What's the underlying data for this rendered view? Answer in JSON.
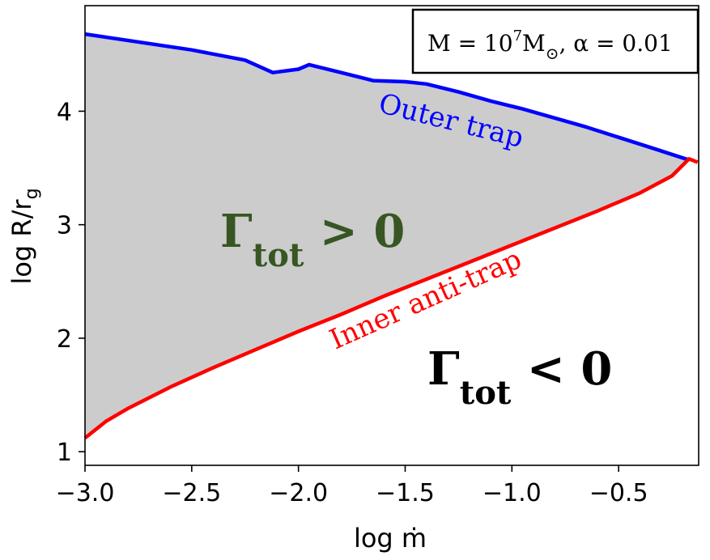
{
  "chart_data": {
    "type": "area",
    "xlabel": "log ṁ",
    "ylabel": "log R/r",
    "ylabel_sub": "g",
    "xlim": [
      -3.0,
      -0.125
    ],
    "ylim": [
      0.88,
      4.93
    ],
    "xticks": [
      -3.0,
      -2.5,
      -2.0,
      -1.5,
      -1.0,
      -0.5
    ],
    "xtick_labels": [
      "−3.0",
      "−2.5",
      "−2.0",
      "−1.5",
      "−1.0",
      "−0.5"
    ],
    "yticks": [
      1,
      2,
      3,
      4
    ],
    "ytick_labels": [
      "1",
      "2",
      "3",
      "4"
    ],
    "series": [
      {
        "name": "Outer trap",
        "color": "#0000ff",
        "x": [
          -3.0,
          -2.5,
          -2.25,
          -2.12,
          -2.0,
          -1.95,
          -1.8,
          -1.65,
          -1.5,
          -1.4,
          -1.25,
          -1.1,
          -0.95,
          -0.8,
          -0.65,
          -0.5,
          -0.35,
          -0.17
        ],
        "y": [
          4.68,
          4.54,
          4.45,
          4.34,
          4.37,
          4.41,
          4.34,
          4.27,
          4.26,
          4.24,
          4.17,
          4.09,
          4.02,
          3.94,
          3.86,
          3.77,
          3.68,
          3.57
        ]
      },
      {
        "name": "Inner anti-trap",
        "color": "#ff0000",
        "x": [
          -3.0,
          -2.9,
          -2.8,
          -2.6,
          -2.4,
          -2.2,
          -2.0,
          -1.8,
          -1.6,
          -1.4,
          -1.2,
          -1.0,
          -0.8,
          -0.6,
          -0.4,
          -0.25,
          -0.17,
          -0.13
        ],
        "y": [
          1.12,
          1.27,
          1.38,
          1.57,
          1.74,
          1.9,
          2.06,
          2.21,
          2.37,
          2.52,
          2.67,
          2.82,
          2.97,
          3.12,
          3.28,
          3.43,
          3.58,
          3.55
        ]
      }
    ],
    "fill_color": "#cccccc",
    "annotations": {
      "legend_box": {
        "prefix": "M = 10",
        "exponent": "7",
        "mass_symbol": "M",
        "sun_subscript": "⊙",
        "suffix": ", α = 0.01",
        "position": "top-right"
      },
      "outer_label": "Outer trap",
      "inner_label": "Inner anti-trap",
      "positive_region": {
        "symbol": "Γ",
        "subscript": "tot",
        "relation": " > 0",
        "color": "#375623"
      },
      "negative_region": {
        "symbol": "Γ",
        "subscript": "tot",
        "relation": " < 0",
        "color": "#000000"
      }
    }
  }
}
